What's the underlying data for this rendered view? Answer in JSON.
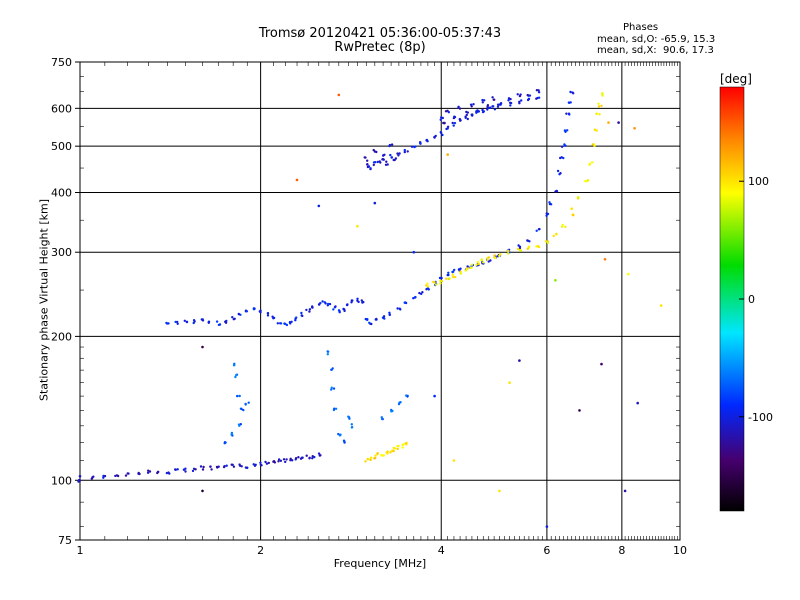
{
  "header": {
    "title_line1": "Tromsø 20120421 05:36:00-05:37:43",
    "title_line2": "RwPretec (8p)"
  },
  "stats": {
    "heading": "Phases",
    "o_line": "mean, sd,O: -65.9, 15.3",
    "x_line": "mean, sd,X:  90.6, 17.3"
  },
  "colorbar": {
    "unit_label": "[deg]",
    "ticks": [
      "100",
      "0",
      "-100"
    ],
    "tick_values": [
      100,
      0,
      -100
    ],
    "range": [
      -180,
      180
    ]
  },
  "chart_data": {
    "type": "scatter",
    "title": "Tromsø 20120421 05:36:00-05:37:43",
    "subtitle": "RwPretec (8p)",
    "xlabel": "Frequency [MHz]",
    "ylabel": "Stationary phase Virtual Height [km]",
    "x_scale": "log",
    "y_scale": "log",
    "xlim": [
      1,
      10
    ],
    "ylim": [
      75,
      750
    ],
    "x_ticks": [
      "1",
      "2",
      "4",
      "6",
      "8",
      "10"
    ],
    "x_tick_values": [
      1,
      2,
      4,
      6,
      8,
      10
    ],
    "y_ticks": [
      "750",
      "600",
      "500",
      "400",
      "300",
      "200",
      "100",
      "75"
    ],
    "y_tick_values": [
      750,
      600,
      500,
      400,
      300,
      200,
      100,
      75
    ],
    "grid": true,
    "color_encoding": "phase [deg]",
    "series": [
      {
        "kind": "E/F1 low trace",
        "phase": -110,
        "points": [
          [
            1.0,
            100
          ],
          [
            1.05,
            101
          ],
          [
            1.1,
            102
          ],
          [
            1.15,
            102
          ],
          [
            1.2,
            103
          ],
          [
            1.25,
            103
          ],
          [
            1.3,
            104
          ],
          [
            1.35,
            104
          ],
          [
            1.4,
            104
          ],
          [
            1.45,
            105
          ],
          [
            1.5,
            105
          ],
          [
            1.55,
            105
          ],
          [
            1.6,
            106
          ],
          [
            1.65,
            106
          ],
          [
            1.7,
            106
          ],
          [
            1.75,
            107
          ],
          [
            1.8,
            107
          ],
          [
            1.85,
            107
          ],
          [
            1.9,
            107
          ],
          [
            1.95,
            108
          ],
          [
            2.0,
            108
          ],
          [
            2.05,
            109
          ],
          [
            2.1,
            109
          ],
          [
            2.15,
            110
          ],
          [
            2.2,
            110
          ],
          [
            2.25,
            110
          ],
          [
            2.3,
            111
          ],
          [
            2.35,
            111
          ],
          [
            2.4,
            112
          ],
          [
            2.45,
            112
          ],
          [
            2.5,
            113
          ]
        ]
      },
      {
        "kind": "F layer O trace",
        "phase": -95,
        "points": [
          [
            1.4,
            213
          ],
          [
            1.45,
            214
          ],
          [
            1.5,
            214
          ],
          [
            1.55,
            215
          ],
          [
            1.6,
            216
          ],
          [
            1.65,
            214
          ],
          [
            1.7,
            213
          ],
          [
            1.75,
            215
          ],
          [
            1.8,
            218
          ],
          [
            1.85,
            222
          ],
          [
            1.9,
            225
          ],
          [
            1.95,
            228
          ],
          [
            2.0,
            226
          ],
          [
            2.05,
            222
          ],
          [
            2.1,
            218
          ],
          [
            2.15,
            214
          ],
          [
            2.2,
            212
          ],
          [
            2.25,
            214
          ],
          [
            2.3,
            218
          ],
          [
            2.35,
            222
          ],
          [
            2.4,
            226
          ],
          [
            2.45,
            230
          ],
          [
            2.5,
            234
          ],
          [
            2.55,
            236
          ],
          [
            2.6,
            233
          ],
          [
            2.65,
            229
          ],
          [
            2.7,
            226
          ],
          [
            2.75,
            228
          ],
          [
            2.8,
            232
          ],
          [
            2.85,
            236
          ],
          [
            2.9,
            238
          ],
          [
            2.95,
            236
          ],
          [
            3.0,
            218
          ],
          [
            3.05,
            214
          ],
          [
            3.1,
            216
          ],
          [
            3.2,
            219
          ],
          [
            3.3,
            223
          ],
          [
            3.4,
            228
          ],
          [
            3.5,
            234
          ],
          [
            3.6,
            240
          ],
          [
            3.7,
            246
          ],
          [
            3.8,
            252
          ],
          [
            3.9,
            258
          ],
          [
            4.0,
            264
          ],
          [
            4.1,
            270
          ],
          [
            4.2,
            274
          ],
          [
            4.3,
            276
          ],
          [
            4.4,
            278
          ],
          [
            4.5,
            280
          ],
          [
            4.6,
            282
          ],
          [
            4.7,
            285
          ],
          [
            4.8,
            288
          ],
          [
            4.9,
            292
          ],
          [
            5.0,
            296
          ],
          [
            5.2,
            302
          ],
          [
            5.4,
            308
          ],
          [
            5.6,
            318
          ],
          [
            5.8,
            335
          ],
          [
            6.0,
            360
          ],
          [
            6.1,
            380
          ],
          [
            6.2,
            405
          ],
          [
            6.3,
            440
          ],
          [
            6.35,
            470
          ],
          [
            6.4,
            500
          ],
          [
            6.45,
            540
          ],
          [
            6.5,
            580
          ],
          [
            6.55,
            620
          ],
          [
            6.6,
            650
          ]
        ]
      },
      {
        "kind": "F layer X trace",
        "phase": 95,
        "points": [
          [
            3.8,
            256
          ],
          [
            3.9,
            258
          ],
          [
            4.0,
            260
          ],
          [
            4.1,
            264
          ],
          [
            4.2,
            268
          ],
          [
            4.3,
            272
          ],
          [
            4.4,
            276
          ],
          [
            4.5,
            280
          ],
          [
            4.6,
            284
          ],
          [
            4.7,
            288
          ],
          [
            4.8,
            291
          ],
          [
            4.9,
            294
          ],
          [
            5.0,
            297
          ],
          [
            5.2,
            300
          ],
          [
            5.4,
            303
          ],
          [
            5.6,
            306
          ],
          [
            5.8,
            310
          ],
          [
            6.0,
            316
          ],
          [
            6.2,
            326
          ],
          [
            6.4,
            340
          ],
          [
            6.6,
            360
          ],
          [
            6.8,
            390
          ],
          [
            7.0,
            425
          ],
          [
            7.1,
            460
          ],
          [
            7.2,
            500
          ],
          [
            7.25,
            540
          ],
          [
            7.3,
            580
          ],
          [
            7.35,
            610
          ],
          [
            7.4,
            640
          ]
        ]
      },
      {
        "kind": "F2 upper trace",
        "phase": -100,
        "points": [
          [
            3.0,
            455
          ],
          [
            3.1,
            460
          ],
          [
            3.2,
            468
          ],
          [
            3.3,
            475
          ],
          [
            3.4,
            482
          ],
          [
            3.5,
            490
          ],
          [
            3.6,
            498
          ],
          [
            3.7,
            506
          ],
          [
            3.8,
            514
          ],
          [
            3.9,
            522
          ],
          [
            4.0,
            532
          ],
          [
            4.1,
            545
          ],
          [
            4.2,
            556
          ],
          [
            4.3,
            566
          ],
          [
            4.4,
            574
          ],
          [
            4.5,
            582
          ],
          [
            4.6,
            588
          ],
          [
            4.7,
            594
          ],
          [
            4.8,
            598
          ],
          [
            4.9,
            602
          ],
          [
            5.0,
            606
          ],
          [
            5.2,
            612
          ],
          [
            5.4,
            618
          ],
          [
            5.6,
            624
          ],
          [
            5.8,
            630
          ]
        ]
      },
      {
        "kind": "upper cloud",
        "phase": -110,
        "points": [
          [
            3.0,
            470
          ],
          [
            3.05,
            450
          ],
          [
            3.1,
            490
          ],
          [
            3.15,
            465
          ],
          [
            3.2,
            480
          ],
          [
            3.25,
            460
          ],
          [
            3.3,
            500
          ],
          [
            3.35,
            470
          ],
          [
            4.0,
            570
          ],
          [
            4.05,
            560
          ],
          [
            4.1,
            590
          ],
          [
            4.2,
            575
          ],
          [
            4.3,
            600
          ],
          [
            4.4,
            585
          ],
          [
            4.5,
            610
          ],
          [
            4.6,
            595
          ],
          [
            4.7,
            620
          ],
          [
            4.8,
            605
          ],
          [
            4.9,
            630
          ],
          [
            5.0,
            615
          ],
          [
            5.2,
            625
          ],
          [
            5.4,
            640
          ],
          [
            5.6,
            635
          ],
          [
            5.8,
            650
          ]
        ]
      },
      {
        "kind": "low X trace",
        "phase": 100,
        "points": [
          [
            3.0,
            110
          ],
          [
            3.05,
            111
          ],
          [
            3.1,
            112
          ],
          [
            3.15,
            113
          ],
          [
            3.2,
            113
          ],
          [
            3.25,
            114
          ],
          [
            3.3,
            115
          ],
          [
            3.35,
            116
          ],
          [
            3.4,
            117
          ],
          [
            3.45,
            118
          ],
          [
            3.5,
            119
          ]
        ]
      },
      {
        "kind": "spread echoes",
        "phase": -70,
        "points": [
          [
            1.8,
            175
          ],
          [
            1.82,
            165
          ],
          [
            1.84,
            150
          ],
          [
            1.86,
            140
          ],
          [
            1.85,
            130
          ],
          [
            1.8,
            125
          ],
          [
            1.75,
            120
          ],
          [
            1.9,
            145
          ],
          [
            2.6,
            185
          ],
          [
            2.62,
            170
          ],
          [
            2.64,
            155
          ],
          [
            2.66,
            140
          ],
          [
            2.7,
            125
          ],
          [
            2.75,
            120
          ],
          [
            2.8,
            135
          ],
          [
            2.85,
            130
          ],
          [
            3.2,
            135
          ],
          [
            3.3,
            140
          ],
          [
            3.4,
            145
          ],
          [
            3.5,
            150
          ]
        ]
      }
    ],
    "scatter_points": [
      {
        "x": 7.6,
        "y": 560,
        "phase": 120
      },
      {
        "x": 8.4,
        "y": 545,
        "phase": 130
      },
      {
        "x": 7.9,
        "y": 560,
        "phase": -120
      },
      {
        "x": 6.2,
        "y": 262,
        "phase": 60
      },
      {
        "x": 6.6,
        "y": 370,
        "phase": 100
      },
      {
        "x": 7.5,
        "y": 290,
        "phase": 140
      },
      {
        "x": 8.2,
        "y": 270,
        "phase": 90
      },
      {
        "x": 9.3,
        "y": 232,
        "phase": 100
      },
      {
        "x": 5.4,
        "y": 178,
        "phase": -120
      },
      {
        "x": 5.2,
        "y": 160,
        "phase": 100
      },
      {
        "x": 7.4,
        "y": 175,
        "phase": -140
      },
      {
        "x": 6.8,
        "y": 140,
        "phase": -150
      },
      {
        "x": 8.5,
        "y": 145,
        "phase": -110
      },
      {
        "x": 5.0,
        "y": 95,
        "phase": 100
      },
      {
        "x": 6.0,
        "y": 80,
        "phase": -100
      },
      {
        "x": 8.1,
        "y": 95,
        "phase": -120
      },
      {
        "x": 1.6,
        "y": 190,
        "phase": -150
      },
      {
        "x": 1.6,
        "y": 95,
        "phase": -160
      },
      {
        "x": 2.3,
        "y": 425,
        "phase": 150
      },
      {
        "x": 2.7,
        "y": 640,
        "phase": 150
      },
      {
        "x": 2.5,
        "y": 375,
        "phase": -100
      },
      {
        "x": 3.1,
        "y": 380,
        "phase": -100
      },
      {
        "x": 2.9,
        "y": 340,
        "phase": 100
      },
      {
        "x": 4.1,
        "y": 480,
        "phase": 120
      },
      {
        "x": 3.6,
        "y": 300,
        "phase": -90
      },
      {
        "x": 1.0,
        "y": 102,
        "phase": -110
      },
      {
        "x": 4.2,
        "y": 110,
        "phase": 100
      },
      {
        "x": 3.9,
        "y": 150,
        "phase": -90
      }
    ]
  }
}
